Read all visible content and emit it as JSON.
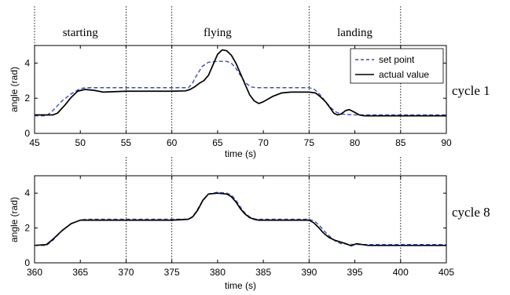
{
  "phase_labels": [
    "starting",
    "flying",
    "landing"
  ],
  "chart_data": [
    {
      "type": "line",
      "cycle_label": "cycle 1",
      "xlabel": "time (s)",
      "ylabel": "angle (rad)",
      "xlim": [
        45,
        90
      ],
      "ylim": [
        0,
        5
      ],
      "xticks": [
        45,
        50,
        55,
        60,
        65,
        70,
        75,
        80,
        85,
        90
      ],
      "yticks": [
        0,
        2,
        4
      ],
      "phase_lines": [
        45,
        55,
        60,
        75,
        85
      ],
      "phase_label_x": [
        50,
        65,
        80
      ],
      "legend": {
        "position": "top-right",
        "entries": [
          "set point",
          "actual value"
        ]
      },
      "series": [
        {
          "name": "set point",
          "style": "dashed",
          "color": "#3b4fb3",
          "x": [
            45,
            46.3,
            47,
            48,
            49,
            50,
            50.6,
            52,
            55,
            60,
            61.8,
            62.2,
            62.6,
            63.3,
            64,
            65,
            66,
            66.5,
            67,
            67.5,
            68,
            68.6,
            69.2,
            70,
            75,
            75.6,
            76.2,
            76.8,
            77.5,
            78,
            78.5,
            80,
            85,
            90
          ],
          "y": [
            1.0,
            1.0,
            1.3,
            1.85,
            2.25,
            2.55,
            2.6,
            2.6,
            2.6,
            2.6,
            2.6,
            2.8,
            3.2,
            3.8,
            4.05,
            4.1,
            4.1,
            4.0,
            3.7,
            3.3,
            2.9,
            2.65,
            2.6,
            2.6,
            2.6,
            2.5,
            2.2,
            1.8,
            1.4,
            1.2,
            1.1,
            1.05,
            1.05,
            1.05
          ]
        },
        {
          "name": "actual value",
          "style": "solid",
          "color": "#000000",
          "x": [
            45,
            47,
            47.5,
            48.3,
            49,
            49.7,
            50.5,
            51.5,
            52.5,
            55,
            60,
            61.5,
            62,
            62.5,
            63,
            63.5,
            64,
            64.5,
            65,
            65.5,
            66,
            66.5,
            67,
            67.5,
            68,
            68.5,
            69,
            69.5,
            70,
            71,
            72,
            73,
            74,
            75,
            75.7,
            76.2,
            76.8,
            77.3,
            77.7,
            78.1,
            78.5,
            79,
            79.4,
            79.8,
            80.5,
            81,
            85,
            90
          ],
          "y": [
            1.05,
            1.05,
            1.15,
            1.6,
            2.05,
            2.4,
            2.5,
            2.45,
            2.35,
            2.4,
            2.4,
            2.42,
            2.5,
            2.65,
            2.85,
            3.0,
            3.3,
            3.9,
            4.5,
            4.75,
            4.7,
            4.45,
            4.0,
            3.4,
            2.8,
            2.2,
            1.85,
            1.7,
            1.8,
            2.1,
            2.3,
            2.35,
            2.35,
            2.35,
            2.3,
            2.1,
            1.8,
            1.45,
            1.15,
            1.05,
            1.1,
            1.3,
            1.35,
            1.25,
            1.05,
            1.0,
            1.0,
            1.0
          ]
        }
      ]
    },
    {
      "type": "line",
      "cycle_label": "cycle 8",
      "xlabel": "time (s)",
      "ylabel": "angle (rad)",
      "xlim": [
        360,
        405
      ],
      "ylim": [
        0,
        5
      ],
      "xticks": [
        360,
        365,
        370,
        375,
        380,
        385,
        390,
        395,
        400,
        405
      ],
      "yticks": [
        0,
        2,
        4
      ],
      "phase_lines": [
        370,
        375,
        390,
        400
      ],
      "series": [
        {
          "name": "set point",
          "style": "dashed",
          "color": "#3b4fb3",
          "x": [
            360,
            361.3,
            362,
            363,
            364,
            365,
            365.6,
            370,
            375,
            376.8,
            377.2,
            377.6,
            378.3,
            379,
            380,
            381,
            381.5,
            382,
            382.5,
            383,
            383.6,
            384.2,
            385,
            390,
            390.6,
            391.2,
            391.8,
            392.5,
            393,
            393.5,
            395,
            400,
            405
          ],
          "y": [
            1.0,
            1.0,
            1.3,
            1.85,
            2.25,
            2.45,
            2.5,
            2.5,
            2.5,
            2.5,
            2.6,
            2.9,
            3.5,
            3.95,
            4.05,
            4.0,
            3.9,
            3.6,
            3.2,
            2.85,
            2.6,
            2.5,
            2.5,
            2.5,
            2.4,
            2.1,
            1.75,
            1.4,
            1.2,
            1.1,
            1.05,
            1.05,
            1.05
          ]
        },
        {
          "name": "actual value",
          "style": "solid",
          "color": "#000000",
          "x": [
            360,
            361.3,
            362,
            363,
            364,
            365,
            365.7,
            367,
            370,
            375,
            376.8,
            377.3,
            377.8,
            378.4,
            379,
            380,
            381,
            381.5,
            382,
            382.5,
            383,
            383.5,
            384,
            384.5,
            385,
            390,
            390.5,
            391,
            391.6,
            392.2,
            392.8,
            393.4,
            394,
            394.6,
            395.2,
            395.8,
            396.5,
            400,
            405
          ],
          "y": [
            1.0,
            1.05,
            1.35,
            1.85,
            2.25,
            2.45,
            2.45,
            2.45,
            2.45,
            2.45,
            2.5,
            2.65,
            3.0,
            3.6,
            3.95,
            4.0,
            3.95,
            3.8,
            3.5,
            3.1,
            2.8,
            2.6,
            2.5,
            2.45,
            2.45,
            2.45,
            2.3,
            2.05,
            1.7,
            1.45,
            1.3,
            1.2,
            1.1,
            0.98,
            1.1,
            1.05,
            1.0,
            1.0,
            1.0
          ]
        }
      ]
    }
  ]
}
